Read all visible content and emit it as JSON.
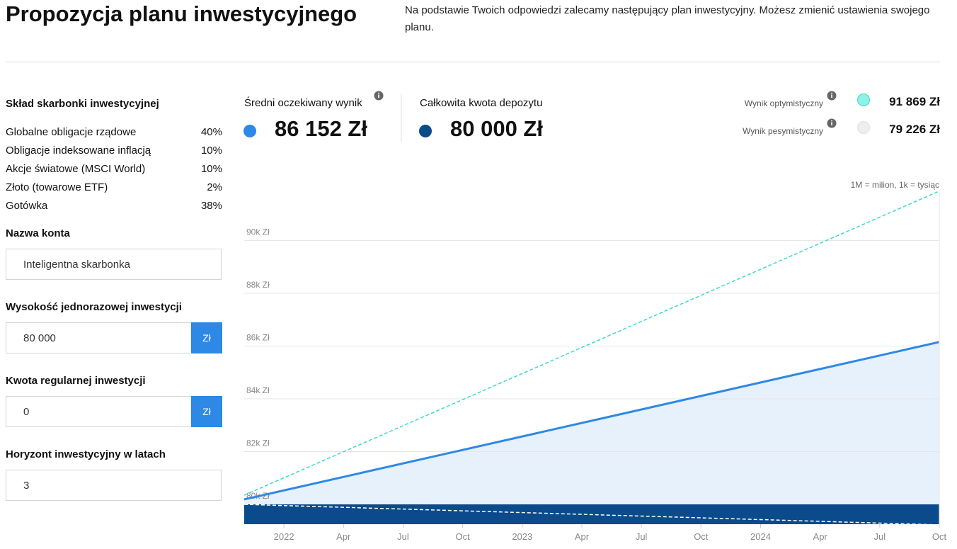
{
  "header": {
    "title": "Propozycja planu inwestycyjnego",
    "description": "Na podstawie Twoich odpowiedzi zalecamy następujący plan inwestycyjny. Możesz zmienić ustawienia swojego planu."
  },
  "sidebar": {
    "composition_title": "Skład skarbonki inwestycyjnej",
    "composition": [
      {
        "name": "Globalne obligacje rządowe",
        "share": "40%"
      },
      {
        "name": "Obligacje indeksowane inflacją",
        "share": "10%"
      },
      {
        "name": "Akcje światowe (MSCI World)",
        "share": "10%"
      },
      {
        "name": "Złoto (towarowe ETF)",
        "share": "2%"
      },
      {
        "name": "Gotówka",
        "share": "38%"
      }
    ],
    "fields": [
      {
        "label": "Nazwa konta",
        "value": "Inteligentna skarbonka"
      },
      {
        "label": "Wysokość jednorazowej inwestycji",
        "value": "80 000",
        "unit": "Zł"
      },
      {
        "label": "Kwota regularnej inwestycji",
        "value": "0",
        "unit": "Zł"
      },
      {
        "label": "Horyzont inwestycyjny w latach",
        "value": "3"
      }
    ]
  },
  "chart_data": {
    "type": "line",
    "note": "1M = milion, 1k = tysiąc",
    "x": [
      "2021-11",
      "2024-10"
    ],
    "xlim": [
      "2021-11",
      "2024-10"
    ],
    "xticks": [
      {
        "value": "2022-01",
        "label": "2022"
      },
      {
        "value": "2022-04",
        "label": "Apr"
      },
      {
        "value": "2022-07",
        "label": "Jul"
      },
      {
        "value": "2022-10",
        "label": "Oct"
      },
      {
        "value": "2023-01",
        "label": "2023"
      },
      {
        "value": "2023-04",
        "label": "Apr"
      },
      {
        "value": "2023-07",
        "label": "Jul"
      },
      {
        "value": "2023-10",
        "label": "Oct"
      },
      {
        "value": "2024-01",
        "label": "2024"
      },
      {
        "value": "2024-04",
        "label": "Apr"
      },
      {
        "value": "2024-07",
        "label": "Jul"
      },
      {
        "value": "2024-10",
        "label": "Oct"
      }
    ],
    "ylim": [
      79250,
      92400
    ],
    "yticks": [
      {
        "value": 80000,
        "label": "80k Zł"
      },
      {
        "value": 82000,
        "label": "82k Zł"
      },
      {
        "value": 84000,
        "label": "84k Zł"
      },
      {
        "value": 86000,
        "label": "86k Zł"
      },
      {
        "value": 88000,
        "label": "88k Zł"
      },
      {
        "value": 90000,
        "label": "90k Zł"
      }
    ],
    "grid": true,
    "series": [
      {
        "name": "Całkowita kwota depozytu",
        "summary": "80 000 Zł",
        "color": "#0b4a8b",
        "style": "area",
        "values": [
          80000,
          80000
        ]
      },
      {
        "name": "Średni oczekiwany wynik",
        "summary": "86 152 Zł",
        "color": "#2e88e6",
        "fill": "#e6f1fc",
        "style": "line-area",
        "values": [
          80190,
          86152
        ]
      },
      {
        "name": "Wynik optymistyczny",
        "summary": "91 869 Zł",
        "color": "#3dd9c9",
        "marker": "#8ef2e6",
        "style": "dashed",
        "values": [
          80350,
          91869
        ]
      },
      {
        "name": "Wynik pesymistyczny",
        "summary": "79 226 Zł",
        "color": "#ffffff",
        "marker": "#eceef4",
        "style": "dashed",
        "values": [
          80000,
          79226
        ]
      }
    ]
  }
}
